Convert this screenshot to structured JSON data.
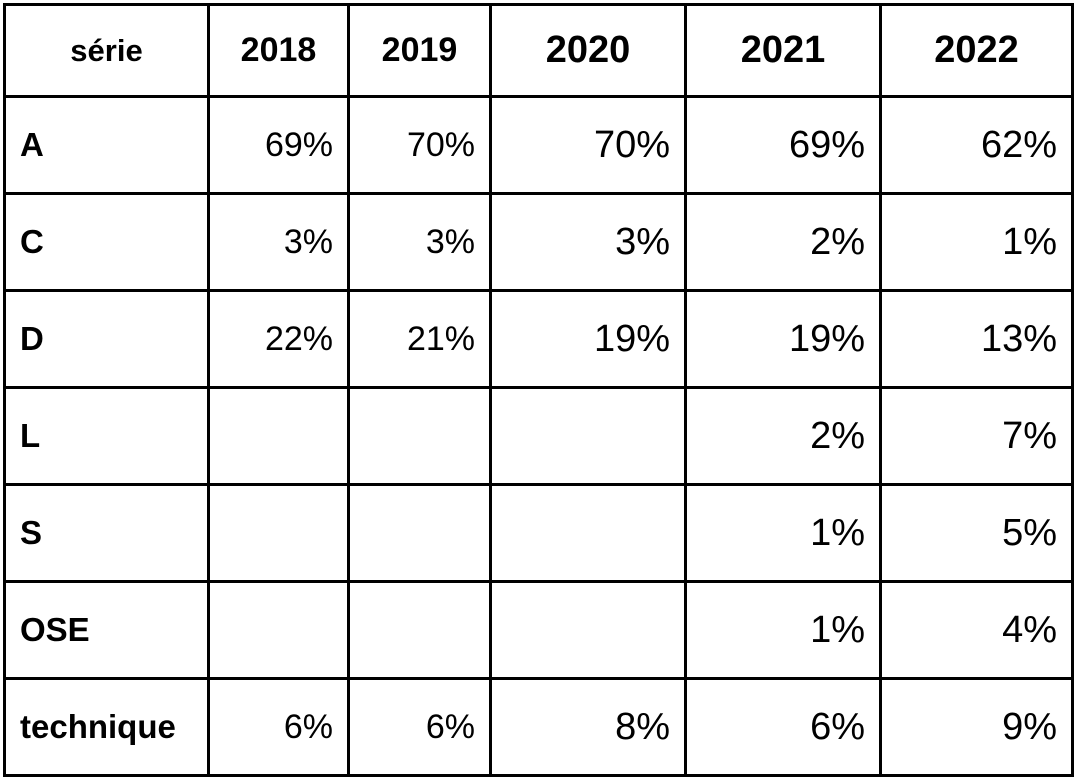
{
  "table": {
    "headers": {
      "serie": "série",
      "y2018": "2018",
      "y2019": "2019",
      "y2020": "2020",
      "y2021": "2021",
      "y2022": "2022"
    },
    "rows": [
      {
        "label": "A",
        "v2018": "69%",
        "v2019": "70%",
        "v2020": "70%",
        "v2021": "69%",
        "v2022": "62%"
      },
      {
        "label": "C",
        "v2018": "3%",
        "v2019": "3%",
        "v2020": "3%",
        "v2021": "2%",
        "v2022": "1%"
      },
      {
        "label": "D",
        "v2018": "22%",
        "v2019": "21%",
        "v2020": "19%",
        "v2021": "19%",
        "v2022": "13%"
      },
      {
        "label": "L",
        "v2018": "",
        "v2019": "",
        "v2020": "",
        "v2021": "2%",
        "v2022": "7%"
      },
      {
        "label": "S",
        "v2018": "",
        "v2019": "",
        "v2020": "",
        "v2021": "1%",
        "v2022": "5%"
      },
      {
        "label": "OSE",
        "v2018": "",
        "v2019": "",
        "v2020": "",
        "v2021": "1%",
        "v2022": "4%"
      },
      {
        "label": "technique",
        "v2018": "6%",
        "v2019": "6%",
        "v2020": "8%",
        "v2021": "6%",
        "v2022": "9%"
      }
    ]
  }
}
